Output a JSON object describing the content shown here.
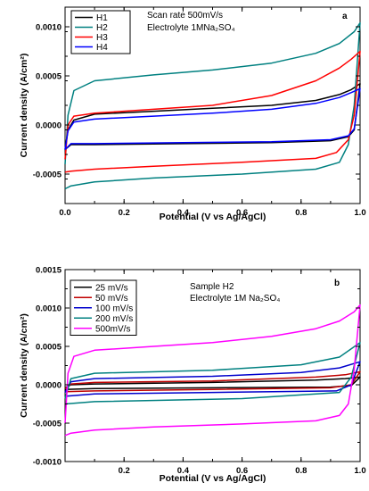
{
  "chart_data": [
    {
      "panel_label": "a",
      "type": "line",
      "title": "",
      "xlabel": "Potential (V vs Ag/AgCl)",
      "ylabel": "Current density (A/cm²)",
      "xlim": [
        0.0,
        1.0
      ],
      "ylim": [
        -0.0008,
        0.0012
      ],
      "xticks": [
        "0.0",
        "0.2",
        "0.4",
        "0.6",
        "0.8",
        "1.0"
      ],
      "yticks": [
        "-0.0005",
        "0.0000",
        "0.0005",
        "0.0010"
      ],
      "annotation_lines": [
        "Scan rate 500mV/s",
        "Electrolyte 1MNa₂SO₄"
      ],
      "legend_position": "top-left",
      "series": [
        {
          "name": "H1",
          "color": "#000000",
          "upper": [
            [
              0.0,
              -0.00025
            ],
            [
              0.01,
              -5e-05
            ],
            [
              0.03,
              5e-05
            ],
            [
              0.1,
              0.00011
            ],
            [
              0.3,
              0.00014
            ],
            [
              0.5,
              0.00017
            ],
            [
              0.7,
              0.0002
            ],
            [
              0.85,
              0.00025
            ],
            [
              0.93,
              0.00031
            ],
            [
              0.97,
              0.00036
            ],
            [
              1.0,
              0.00042
            ]
          ],
          "lower": [
            [
              1.0,
              0.00042
            ],
            [
              0.98,
              -5e-05
            ],
            [
              0.96,
              -0.00012
            ],
            [
              0.9,
              -0.00016
            ],
            [
              0.7,
              -0.00018
            ],
            [
              0.4,
              -0.00019
            ],
            [
              0.1,
              -0.0002
            ],
            [
              0.02,
              -0.0002
            ],
            [
              0.0,
              -0.00025
            ]
          ]
        },
        {
          "name": "H2",
          "color": "#008080",
          "upper": [
            [
              0.0,
              -0.0004
            ],
            [
              0.01,
              0.0001
            ],
            [
              0.03,
              0.00035
            ],
            [
              0.1,
              0.00045
            ],
            [
              0.3,
              0.00051
            ],
            [
              0.5,
              0.00056
            ],
            [
              0.7,
              0.00063
            ],
            [
              0.85,
              0.00073
            ],
            [
              0.93,
              0.00083
            ],
            [
              0.98,
              0.00095
            ],
            [
              1.0,
              0.00104
            ]
          ],
          "lower": [
            [
              1.0,
              0.00104
            ],
            [
              0.98,
              0.0002
            ],
            [
              0.96,
              -0.0002
            ],
            [
              0.93,
              -0.00038
            ],
            [
              0.85,
              -0.00045
            ],
            [
              0.6,
              -0.0005
            ],
            [
              0.3,
              -0.00054
            ],
            [
              0.1,
              -0.00058
            ],
            [
              0.02,
              -0.00062
            ],
            [
              0.0,
              -0.00065
            ]
          ]
        },
        {
          "name": "H3",
          "color": "#ff0000",
          "upper": [
            [
              0.0,
              -0.00035
            ],
            [
              0.01,
              0.0
            ],
            [
              0.03,
              9e-05
            ],
            [
              0.1,
              0.00012
            ],
            [
              0.3,
              0.00016
            ],
            [
              0.5,
              0.0002
            ],
            [
              0.7,
              0.0003
            ],
            [
              0.85,
              0.00045
            ],
            [
              0.93,
              0.00058
            ],
            [
              0.97,
              0.00067
            ],
            [
              1.0,
              0.00075
            ]
          ],
          "lower": [
            [
              1.0,
              0.00075
            ],
            [
              0.98,
              0.0001
            ],
            [
              0.96,
              -0.00015
            ],
            [
              0.92,
              -0.00028
            ],
            [
              0.85,
              -0.00034
            ],
            [
              0.6,
              -0.00038
            ],
            [
              0.3,
              -0.00042
            ],
            [
              0.1,
              -0.00045
            ],
            [
              0.02,
              -0.00047
            ],
            [
              0.0,
              -0.00048
            ]
          ]
        },
        {
          "name": "H4",
          "color": "#0000ff",
          "upper": [
            [
              0.0,
              -0.00025
            ],
            [
              0.01,
              -6e-05
            ],
            [
              0.03,
              3e-05
            ],
            [
              0.1,
              6e-05
            ],
            [
              0.3,
              9e-05
            ],
            [
              0.5,
              0.00012
            ],
            [
              0.7,
              0.00016
            ],
            [
              0.85,
              0.00022
            ],
            [
              0.93,
              0.00028
            ],
            [
              0.97,
              0.00033
            ],
            [
              1.0,
              0.00037
            ]
          ],
          "lower": [
            [
              1.0,
              0.00037
            ],
            [
              0.98,
              -4e-05
            ],
            [
              0.96,
              -0.00011
            ],
            [
              0.9,
              -0.00015
            ],
            [
              0.7,
              -0.00017
            ],
            [
              0.4,
              -0.00018
            ],
            [
              0.1,
              -0.00019
            ],
            [
              0.02,
              -0.00019
            ],
            [
              0.0,
              -0.00025
            ]
          ]
        }
      ]
    },
    {
      "panel_label": "b",
      "type": "line",
      "title": "",
      "xlabel": "Potential (V vs Ag/AgCl)",
      "ylabel": "Current density (A/cm²)",
      "xlim": [
        0.0,
        1.0
      ],
      "ylim": [
        -0.001,
        0.0015
      ],
      "xticks": [
        "0.2",
        "0.4",
        "0.6",
        "0.8",
        "1.0"
      ],
      "yticks": [
        "-0.0010",
        "-0.0005",
        "0.0000",
        "0.0005",
        "0.0010",
        "0.0015"
      ],
      "annotation_lines": [
        "Sample H2",
        "Electrolyte 1M Na₂SO₄"
      ],
      "legend_position": "top-left",
      "series": [
        {
          "name": "25 mV/s",
          "color": "#000000",
          "upper": [
            [
              0.0,
              -4e-05
            ],
            [
              0.02,
              0.0
            ],
            [
              0.1,
              1e-05
            ],
            [
              0.5,
              3e-05
            ],
            [
              0.85,
              6e-05
            ],
            [
              0.95,
              8e-05
            ],
            [
              1.0,
              0.0001
            ]
          ],
          "lower": [
            [
              1.0,
              0.0001
            ],
            [
              0.97,
              -1e-05
            ],
            [
              0.9,
              -3e-05
            ],
            [
              0.5,
              -4e-05
            ],
            [
              0.1,
              -5e-05
            ],
            [
              0.0,
              -6e-05
            ]
          ]
        },
        {
          "name": "50 mV/s",
          "color": "#c00000",
          "upper": [
            [
              0.0,
              -5e-05
            ],
            [
              0.02,
              1e-05
            ],
            [
              0.1,
              3e-05
            ],
            [
              0.5,
              5e-05
            ],
            [
              0.85,
              0.0001
            ],
            [
              0.95,
              0.00013
            ],
            [
              1.0,
              0.00017
            ]
          ],
          "lower": [
            [
              1.0,
              0.00017
            ],
            [
              0.97,
              0.0
            ],
            [
              0.9,
              -4e-05
            ],
            [
              0.5,
              -6e-05
            ],
            [
              0.1,
              -8e-05
            ],
            [
              0.0,
              -9e-05
            ]
          ]
        },
        {
          "name": "100 mV/s",
          "color": "#0000cc",
          "upper": [
            [
              0.0,
              -0.0001
            ],
            [
              0.02,
              4e-05
            ],
            [
              0.1,
              8e-05
            ],
            [
              0.5,
              0.00011
            ],
            [
              0.8,
              0.00016
            ],
            [
              0.93,
              0.00022
            ],
            [
              1.0,
              0.0003
            ]
          ],
          "lower": [
            [
              1.0,
              0.0003
            ],
            [
              0.97,
              0.0
            ],
            [
              0.92,
              -8e-05
            ],
            [
              0.5,
              -0.0001
            ],
            [
              0.1,
              -0.00012
            ],
            [
              0.0,
              -0.00015
            ]
          ]
        },
        {
          "name": "200 mV/s",
          "color": "#008080",
          "upper": [
            [
              0.0,
              -0.00018
            ],
            [
              0.02,
              8e-05
            ],
            [
              0.1,
              0.00015
            ],
            [
              0.5,
              0.00019
            ],
            [
              0.8,
              0.00026
            ],
            [
              0.93,
              0.00036
            ],
            [
              1.0,
              0.00055
            ]
          ],
          "lower": [
            [
              1.0,
              0.00055
            ],
            [
              0.97,
              0.0001
            ],
            [
              0.93,
              -0.0001
            ],
            [
              0.6,
              -0.00018
            ],
            [
              0.1,
              -0.00022
            ],
            [
              0.0,
              -0.00025
            ]
          ]
        },
        {
          "name": "500mV/s",
          "color": "#ff00ff",
          "upper": [
            [
              0.0,
              -0.0005
            ],
            [
              0.01,
              0.00015
            ],
            [
              0.03,
              0.00037
            ],
            [
              0.1,
              0.00045
            ],
            [
              0.3,
              0.0005
            ],
            [
              0.5,
              0.00055
            ],
            [
              0.7,
              0.00063
            ],
            [
              0.85,
              0.00073
            ],
            [
              0.93,
              0.00083
            ],
            [
              0.98,
              0.00095
            ],
            [
              1.0,
              0.00104
            ]
          ],
          "lower": [
            [
              1.0,
              0.00104
            ],
            [
              0.98,
              0.0002
            ],
            [
              0.96,
              -0.00025
            ],
            [
              0.93,
              -0.0004
            ],
            [
              0.85,
              -0.00047
            ],
            [
              0.6,
              -0.00051
            ],
            [
              0.3,
              -0.00055
            ],
            [
              0.1,
              -0.00059
            ],
            [
              0.02,
              -0.00063
            ],
            [
              0.0,
              -0.00066
            ]
          ]
        }
      ]
    }
  ]
}
